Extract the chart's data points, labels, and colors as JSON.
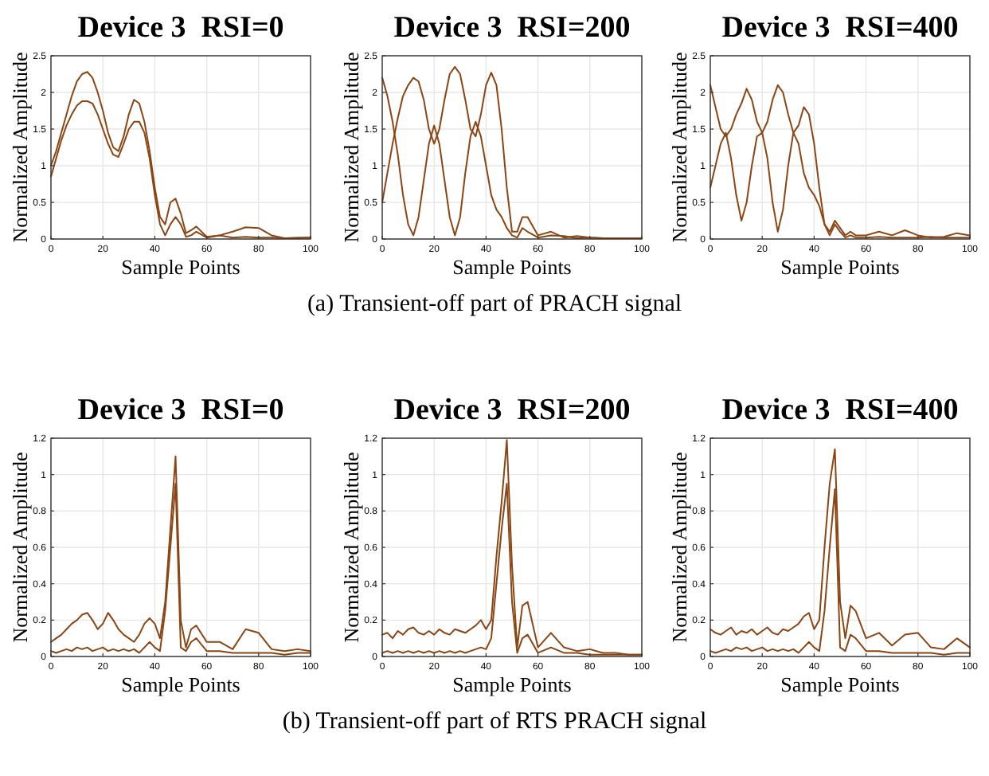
{
  "chart_data": [
    {
      "type": "line",
      "title": "Device 3  RSI=0",
      "xlabel": "Sample Points",
      "ylabel": "Normalized Amplitude",
      "x": [
        0,
        2,
        4,
        6,
        8,
        10,
        12,
        14,
        16,
        18,
        20,
        22,
        24,
        26,
        28,
        30,
        32,
        34,
        36,
        38,
        40,
        42,
        44,
        46,
        48,
        50,
        52,
        54,
        56,
        60,
        65,
        70,
        75,
        80,
        85,
        90,
        95,
        100
      ],
      "xlim": [
        0,
        100
      ],
      "xticks": [
        0,
        20,
        40,
        60,
        80,
        100
      ],
      "ylim": [
        0,
        2.5
      ],
      "yticks": [
        0,
        0.5,
        1,
        1.5,
        2,
        2.5
      ],
      "grid": true,
      "series": [
        {
          "color": "#8b4513",
          "values": [
            1.0,
            1.2,
            1.45,
            1.7,
            1.95,
            2.15,
            2.25,
            2.28,
            2.2,
            2.0,
            1.75,
            1.45,
            1.25,
            1.2,
            1.4,
            1.7,
            1.9,
            1.85,
            1.6,
            1.2,
            0.7,
            0.3,
            0.2,
            0.5,
            0.55,
            0.35,
            0.08,
            0.12,
            0.17,
            0.03,
            0.05,
            0.02,
            0.03,
            0.02,
            0.02,
            0.01,
            0.02,
            0.02
          ]
        },
        {
          "color": "#8b4513",
          "values": [
            0.85,
            1.1,
            1.35,
            1.55,
            1.7,
            1.82,
            1.88,
            1.88,
            1.85,
            1.7,
            1.5,
            1.3,
            1.15,
            1.12,
            1.3,
            1.5,
            1.6,
            1.6,
            1.45,
            1.1,
            0.6,
            0.2,
            0.05,
            0.2,
            0.3,
            0.2,
            0.03,
            0.05,
            0.1,
            0.02,
            0.05,
            0.1,
            0.16,
            0.15,
            0.05,
            0.01,
            0.01,
            0.02
          ]
        }
      ]
    },
    {
      "type": "line",
      "title": "Device 3  RSI=200",
      "xlabel": "Sample Points",
      "ylabel": "Normalized Amplitude",
      "annotations": [
        "(a)  Transient-off part of PRACH signal"
      ],
      "x": [
        0,
        2,
        4,
        6,
        8,
        10,
        12,
        14,
        16,
        18,
        20,
        22,
        24,
        26,
        28,
        30,
        32,
        34,
        36,
        38,
        40,
        42,
        44,
        46,
        48,
        50,
        52,
        54,
        56,
        60,
        65,
        70,
        75,
        80,
        85,
        90,
        95,
        100
      ],
      "xlim": [
        0,
        100
      ],
      "xticks": [
        0,
        20,
        40,
        60,
        80,
        100
      ],
      "ylim": [
        0,
        2.5
      ],
      "yticks": [
        0,
        0.5,
        1,
        1.5,
        2,
        2.5
      ],
      "grid": true,
      "series": [
        {
          "color": "#8b4513",
          "values": [
            0.5,
            0.9,
            1.3,
            1.65,
            1.95,
            2.1,
            2.2,
            2.15,
            1.9,
            1.5,
            1.3,
            1.5,
            1.9,
            2.25,
            2.35,
            2.25,
            1.9,
            1.5,
            1.4,
            1.7,
            2.1,
            2.27,
            2.1,
            1.5,
            0.7,
            0.1,
            0.1,
            0.3,
            0.3,
            0.05,
            0.1,
            0.02,
            0.04,
            0.02,
            0.01,
            0.01,
            0.01,
            0.01
          ]
        },
        {
          "color": "#8b4513",
          "values": [
            2.2,
            1.95,
            1.6,
            1.15,
            0.6,
            0.2,
            0.05,
            0.3,
            0.8,
            1.3,
            1.55,
            1.3,
            0.8,
            0.3,
            0.05,
            0.3,
            0.9,
            1.4,
            1.6,
            1.4,
            1.0,
            0.6,
            0.4,
            0.3,
            0.15,
            0.05,
            0.02,
            0.15,
            0.1,
            0.02,
            0.05,
            0.04,
            0.01,
            0.02,
            0.01,
            0.01,
            0.01,
            0.01
          ]
        }
      ]
    },
    {
      "type": "line",
      "title": "Device 3  RSI=400",
      "xlabel": "Sample Points",
      "ylabel": "Normalized Amplitude",
      "x": [
        0,
        2,
        4,
        6,
        8,
        10,
        12,
        14,
        16,
        18,
        20,
        22,
        24,
        26,
        28,
        30,
        32,
        34,
        36,
        38,
        40,
        42,
        44,
        46,
        48,
        50,
        52,
        54,
        56,
        60,
        65,
        70,
        75,
        80,
        85,
        90,
        95,
        100
      ],
      "xlim": [
        0,
        100
      ],
      "xticks": [
        0,
        20,
        40,
        60,
        80,
        100
      ],
      "ylim": [
        0,
        2.5
      ],
      "yticks": [
        0,
        0.5,
        1,
        1.5,
        2,
        2.5
      ],
      "grid": true,
      "series": [
        {
          "color": "#8b4513",
          "values": [
            2.1,
            1.8,
            1.5,
            1.4,
            1.5,
            1.7,
            1.85,
            2.05,
            1.9,
            1.6,
            1.45,
            1.6,
            1.9,
            2.1,
            2.0,
            1.7,
            1.45,
            1.55,
            1.8,
            1.7,
            1.3,
            0.7,
            0.2,
            0.1,
            0.25,
            0.15,
            0.05,
            0.1,
            0.05,
            0.05,
            0.1,
            0.05,
            0.12,
            0.05,
            0.02,
            0.03,
            0.08,
            0.05
          ]
        },
        {
          "color": "#8b4513",
          "values": [
            0.7,
            1.0,
            1.3,
            1.45,
            1.1,
            0.6,
            0.25,
            0.5,
            1.0,
            1.4,
            1.45,
            1.1,
            0.5,
            0.1,
            0.4,
            1.0,
            1.45,
            1.3,
            0.9,
            0.7,
            0.6,
            0.45,
            0.2,
            0.05,
            0.2,
            0.1,
            0.02,
            0.05,
            0.02,
            0.02,
            0.03,
            0.02,
            0.02,
            0.02,
            0.03,
            0.02,
            0.02,
            0.02
          ]
        }
      ]
    },
    {
      "type": "line",
      "title": "Device 3  RSI=0",
      "xlabel": "Sample Points",
      "ylabel": "Normalized Amplitude",
      "x": [
        0,
        2,
        4,
        6,
        8,
        10,
        12,
        14,
        16,
        18,
        20,
        22,
        24,
        26,
        28,
        30,
        32,
        34,
        36,
        38,
        40,
        42,
        44,
        46,
        48,
        50,
        52,
        54,
        56,
        60,
        65,
        70,
        75,
        80,
        85,
        90,
        95,
        100
      ],
      "xlim": [
        0,
        100
      ],
      "xticks": [
        0,
        20,
        40,
        60,
        80,
        100
      ],
      "ylim": [
        0,
        1.2
      ],
      "yticks": [
        0,
        0.2,
        0.4,
        0.6,
        0.8,
        1,
        1.2
      ],
      "grid": true,
      "series": [
        {
          "color": "#8b4513",
          "values": [
            0.08,
            0.1,
            0.12,
            0.15,
            0.18,
            0.2,
            0.23,
            0.24,
            0.2,
            0.15,
            0.18,
            0.24,
            0.2,
            0.15,
            0.12,
            0.1,
            0.08,
            0.12,
            0.18,
            0.21,
            0.18,
            0.1,
            0.3,
            0.7,
            1.1,
            0.2,
            0.05,
            0.15,
            0.17,
            0.08,
            0.08,
            0.04,
            0.15,
            0.13,
            0.04,
            0.03,
            0.04,
            0.03
          ]
        },
        {
          "color": "#8b4513",
          "values": [
            0.03,
            0.02,
            0.03,
            0.04,
            0.03,
            0.05,
            0.04,
            0.05,
            0.03,
            0.04,
            0.05,
            0.03,
            0.04,
            0.03,
            0.04,
            0.03,
            0.04,
            0.02,
            0.05,
            0.08,
            0.05,
            0.03,
            0.25,
            0.6,
            0.95,
            0.05,
            0.03,
            0.08,
            0.1,
            0.03,
            0.03,
            0.02,
            0.02,
            0.02,
            0.02,
            0.01,
            0.02,
            0.02
          ]
        }
      ]
    },
    {
      "type": "line",
      "title": "Device 3  RSI=200",
      "xlabel": "Sample Points",
      "ylabel": "Normalized Amplitude",
      "annotations": [
        "(b)  Transient-off part of RTS PRACH signal"
      ],
      "x": [
        0,
        2,
        4,
        6,
        8,
        10,
        12,
        14,
        16,
        18,
        20,
        22,
        24,
        26,
        28,
        30,
        32,
        34,
        36,
        38,
        40,
        42,
        44,
        46,
        48,
        50,
        52,
        54,
        56,
        60,
        65,
        70,
        75,
        80,
        85,
        90,
        95,
        100
      ],
      "xlim": [
        0,
        100
      ],
      "xticks": [
        0,
        20,
        40,
        60,
        80,
        100
      ],
      "ylim": [
        0,
        1.2
      ],
      "yticks": [
        0,
        0.2,
        0.4,
        0.6,
        0.8,
        1,
        1.2
      ],
      "grid": true,
      "series": [
        {
          "color": "#8b4513",
          "values": [
            0.12,
            0.13,
            0.1,
            0.14,
            0.12,
            0.15,
            0.16,
            0.13,
            0.12,
            0.14,
            0.12,
            0.15,
            0.13,
            0.12,
            0.15,
            0.14,
            0.13,
            0.15,
            0.17,
            0.2,
            0.15,
            0.2,
            0.55,
            0.85,
            1.19,
            0.5,
            0.05,
            0.28,
            0.3,
            0.05,
            0.13,
            0.05,
            0.03,
            0.04,
            0.02,
            0.02,
            0.01,
            0.01
          ]
        },
        {
          "color": "#8b4513",
          "values": [
            0.02,
            0.03,
            0.02,
            0.03,
            0.02,
            0.03,
            0.02,
            0.03,
            0.02,
            0.03,
            0.02,
            0.03,
            0.02,
            0.03,
            0.02,
            0.03,
            0.02,
            0.03,
            0.04,
            0.05,
            0.04,
            0.1,
            0.4,
            0.7,
            0.95,
            0.3,
            0.02,
            0.1,
            0.12,
            0.02,
            0.05,
            0.02,
            0.02,
            0.01,
            0.01,
            0.01,
            0.01,
            0.01
          ]
        }
      ]
    },
    {
      "type": "line",
      "title": "Device 3  RSI=400",
      "xlabel": "Sample Points",
      "ylabel": "Normalized Amplitude",
      "x": [
        0,
        2,
        4,
        6,
        8,
        10,
        12,
        14,
        16,
        18,
        20,
        22,
        24,
        26,
        28,
        30,
        32,
        34,
        36,
        38,
        40,
        42,
        44,
        46,
        48,
        50,
        52,
        54,
        56,
        60,
        65,
        70,
        75,
        80,
        85,
        90,
        95,
        100
      ],
      "xlim": [
        0,
        100
      ],
      "xticks": [
        0,
        20,
        40,
        60,
        80,
        100
      ],
      "ylim": [
        0,
        1.2
      ],
      "yticks": [
        0,
        0.2,
        0.4,
        0.6,
        0.8,
        1,
        1.2
      ],
      "grid": true,
      "series": [
        {
          "color": "#8b4513",
          "values": [
            0.15,
            0.13,
            0.12,
            0.14,
            0.16,
            0.12,
            0.14,
            0.13,
            0.15,
            0.12,
            0.14,
            0.16,
            0.13,
            0.12,
            0.15,
            0.14,
            0.16,
            0.18,
            0.22,
            0.24,
            0.15,
            0.2,
            0.6,
            0.95,
            1.14,
            0.3,
            0.1,
            0.28,
            0.25,
            0.1,
            0.13,
            0.06,
            0.12,
            0.13,
            0.05,
            0.04,
            0.1,
            0.05
          ]
        },
        {
          "color": "#8b4513",
          "values": [
            0.03,
            0.02,
            0.03,
            0.04,
            0.03,
            0.05,
            0.04,
            0.05,
            0.03,
            0.04,
            0.05,
            0.03,
            0.04,
            0.03,
            0.04,
            0.03,
            0.04,
            0.02,
            0.05,
            0.08,
            0.05,
            0.03,
            0.25,
            0.6,
            0.92,
            0.05,
            0.03,
            0.12,
            0.1,
            0.03,
            0.03,
            0.02,
            0.02,
            0.02,
            0.02,
            0.01,
            0.02,
            0.02
          ]
        }
      ]
    }
  ]
}
